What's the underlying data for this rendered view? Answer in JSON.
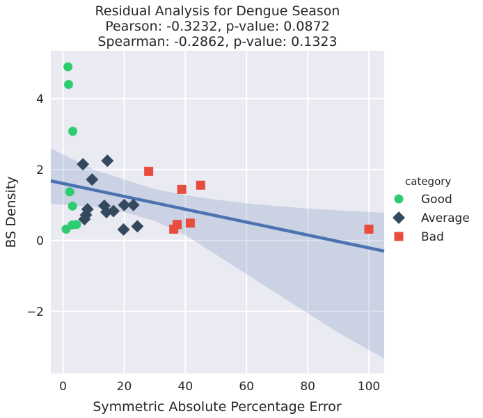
{
  "chart_data": {
    "type": "scatter",
    "title": [
      "Residual Analysis for Dengue Season",
      "Pearson: -0.3232, p-value: 0.0872",
      "Spearman: -0.2862, p-value: 0.1323"
    ],
    "xlabel": "Symmetric Absolute Percentage Error",
    "ylabel": "BS Density",
    "xlim": [
      -4,
      105
    ],
    "ylim": [
      -3.75,
      5.35
    ],
    "xticks": [
      0,
      20,
      40,
      60,
      80,
      100
    ],
    "yticks": [
      -2,
      0,
      2,
      4
    ],
    "ytick_labels": [
      "−2",
      "0",
      "2",
      "4"
    ],
    "grid": true,
    "legend": {
      "title": "category",
      "position": "right"
    },
    "series": [
      {
        "name": "Good",
        "marker": "circle",
        "color": "#2ecc71",
        "points": [
          [
            1.6,
            4.9
          ],
          [
            1.8,
            4.4
          ],
          [
            3.2,
            3.08
          ],
          [
            2.2,
            1.37
          ],
          [
            3.1,
            0.97
          ],
          [
            3.0,
            0.44
          ],
          [
            4.4,
            0.45
          ],
          [
            1.0,
            0.32
          ]
        ]
      },
      {
        "name": "Average",
        "marker": "diamond",
        "color": "#34495e",
        "points": [
          [
            6.5,
            2.15
          ],
          [
            14.5,
            2.25
          ],
          [
            9.5,
            1.72
          ],
          [
            8.0,
            0.88
          ],
          [
            7.5,
            0.72
          ],
          [
            7.0,
            0.6
          ],
          [
            13.5,
            0.98
          ],
          [
            14.2,
            0.8
          ],
          [
            16.5,
            0.83
          ],
          [
            20.0,
            1.0
          ],
          [
            23.0,
            1.0
          ],
          [
            19.8,
            0.31
          ],
          [
            24.3,
            0.4
          ]
        ]
      },
      {
        "name": "Bad",
        "marker": "square",
        "color": "#e74c3c",
        "points": [
          [
            28.0,
            1.95
          ],
          [
            38.8,
            1.44
          ],
          [
            45.0,
            1.56
          ],
          [
            36.2,
            0.32
          ],
          [
            37.3,
            0.45
          ],
          [
            41.6,
            0.49
          ],
          [
            100.0,
            0.32
          ]
        ]
      }
    ],
    "regression": {
      "color": "#4c72b0",
      "line": [
        [
          -4,
          1.68
        ],
        [
          105,
          -0.3
        ]
      ],
      "ci_band": {
        "upper": [
          [
            -4,
            2.6
          ],
          [
            10,
            2.0
          ],
          [
            20,
            1.72
          ],
          [
            30,
            1.45
          ],
          [
            40,
            1.28
          ],
          [
            50,
            1.15
          ],
          [
            60,
            1.05
          ],
          [
            70,
            0.97
          ],
          [
            80,
            0.9
          ],
          [
            90,
            0.85
          ],
          [
            105,
            0.78
          ]
        ],
        "lower": [
          [
            -4,
            1.03
          ],
          [
            10,
            0.95
          ],
          [
            20,
            0.8
          ],
          [
            30,
            0.55
          ],
          [
            40,
            0.15
          ],
          [
            50,
            -0.4
          ],
          [
            60,
            -0.95
          ],
          [
            70,
            -1.5
          ],
          [
            80,
            -2.05
          ],
          [
            90,
            -2.6
          ],
          [
            105,
            -3.33
          ]
        ]
      }
    }
  }
}
